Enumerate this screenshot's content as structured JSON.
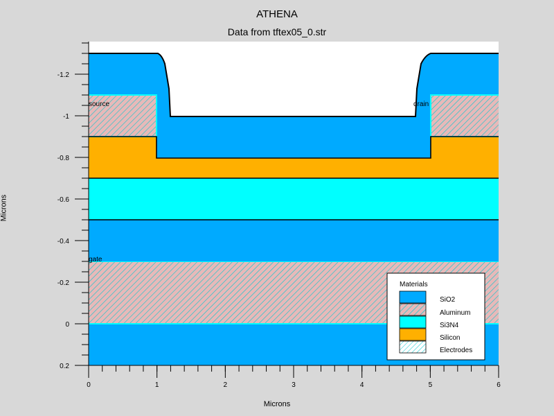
{
  "title": "ATHENA",
  "subtitle": "Data from tftex05_0.str",
  "xlabel": "Microns",
  "ylabel": "Microns",
  "x_ticks": [
    "0",
    "1",
    "2",
    "3",
    "4",
    "5",
    "6"
  ],
  "y_ticks": [
    "-1.2",
    "-1",
    "-0.8",
    "-0.6",
    "-0.4",
    "-0.2",
    "0",
    "0.2"
  ],
  "electrode_labels": {
    "source": "source",
    "drain": "drain",
    "gate": "gate"
  },
  "legend": {
    "title": "Materials",
    "items": [
      {
        "label": "SiO2",
        "color": "#00aaff"
      },
      {
        "label": "Aluminum",
        "color": "#e7b9b9"
      },
      {
        "label": "Si3N4",
        "color": "#00ffff"
      },
      {
        "label": "Silicon",
        "color": "#ffb000"
      },
      {
        "label": "Electrodes",
        "color": "#ffffff"
      }
    ]
  },
  "colors": {
    "sio2": "#00aaff",
    "aluminum": "#e7b9b9",
    "si3n4": "#00ffff",
    "silicon": "#ffb000",
    "hatch": "#00c8d0"
  }
}
